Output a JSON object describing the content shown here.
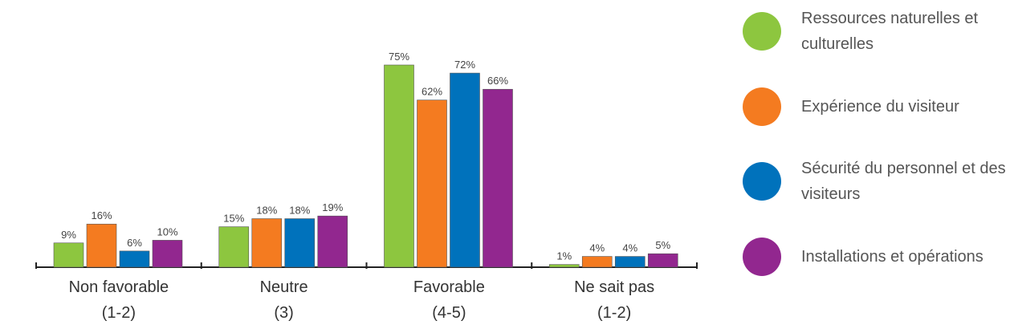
{
  "chart_data": {
    "type": "bar",
    "categories": [
      [
        "Non favorable",
        "(1-2)"
      ],
      [
        "Neutre",
        "(3)"
      ],
      [
        "Favorable",
        "(4-5)"
      ],
      [
        "Ne sait pas",
        "(1-2)"
      ]
    ],
    "series": [
      {
        "name": "Ressources naturelles et culturelles",
        "color": "#8dc63f",
        "values": [
          9,
          15,
          75,
          1
        ],
        "value_labels": [
          "9%",
          "15%",
          "75%",
          "1%"
        ]
      },
      {
        "name": "Expérience du visiteur",
        "color": "#f47b20",
        "values": [
          16,
          18,
          62,
          4
        ],
        "value_labels": [
          "16%",
          "18%",
          "62%",
          "4%"
        ]
      },
      {
        "name": "Sécurité du personnel et des visiteurs",
        "color": "#0072bc",
        "values": [
          6,
          18,
          72,
          4
        ],
        "value_labels": [
          "6%",
          "18%",
          "72%",
          "4%"
        ]
      },
      {
        "name": "Installations et opérations",
        "color": "#92278f",
        "values": [
          10,
          19,
          66,
          5
        ],
        "value_labels": [
          "10%",
          "19%",
          "66%",
          "5%"
        ]
      }
    ],
    "legend": "right"
  }
}
